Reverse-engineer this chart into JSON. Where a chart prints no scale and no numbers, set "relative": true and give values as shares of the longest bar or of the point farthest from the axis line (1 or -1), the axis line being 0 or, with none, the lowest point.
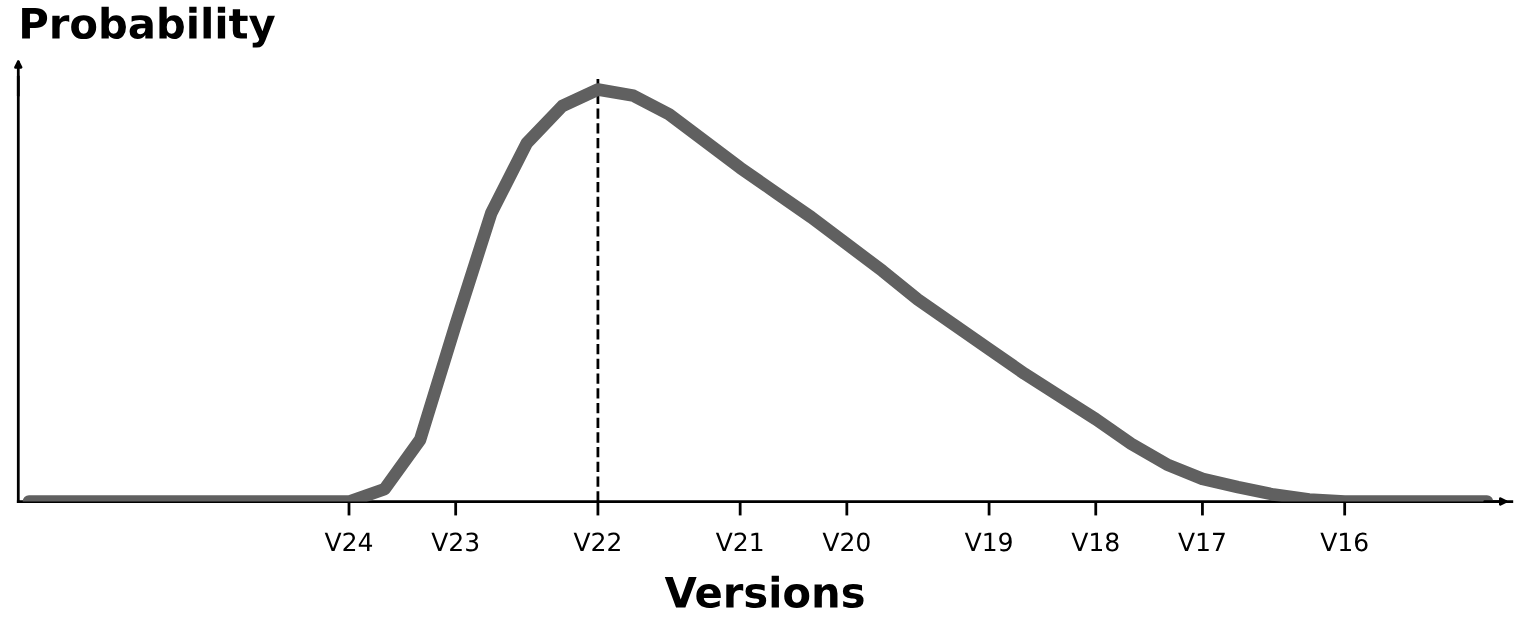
{
  "chart_data": {
    "type": "line",
    "relative": true,
    "xlabel": "Versions",
    "ylabel": "Probability",
    "categories": [
      null,
      null,
      null,
      null,
      null,
      null,
      null,
      null,
      null,
      "V24",
      null,
      null,
      "V23",
      null,
      null,
      null,
      "V22",
      null,
      null,
      null,
      "V21",
      null,
      null,
      "V20",
      null,
      null,
      null,
      "V19",
      null,
      null,
      "V18",
      null,
      null,
      "V17",
      null,
      null,
      null,
      "V16",
      null,
      null,
      null,
      null
    ],
    "series": [
      {
        "color": "#606060",
        "values": [
          0,
          0,
          0,
          0,
          0,
          0,
          0,
          0,
          0,
          0,
          0.03,
          0.15,
          0.43,
          0.7,
          0.87,
          0.96,
          1,
          0.985,
          0.94,
          0.875,
          0.81,
          0.75,
          0.69,
          0.625,
          0.56,
          0.49,
          0.43,
          0.37,
          0.31,
          0.255,
          0.2,
          0.14,
          0.09,
          0.055,
          0.035,
          0.017,
          0.005,
          0,
          0,
          0,
          0,
          0
        ]
      }
    ],
    "ref_lines": [
      {
        "axis": "x",
        "value": "V22",
        "color": "#000000",
        "line_style": "dashed"
      }
    ],
    "marker": "none",
    "line_style": "solid",
    "grid": false
  }
}
